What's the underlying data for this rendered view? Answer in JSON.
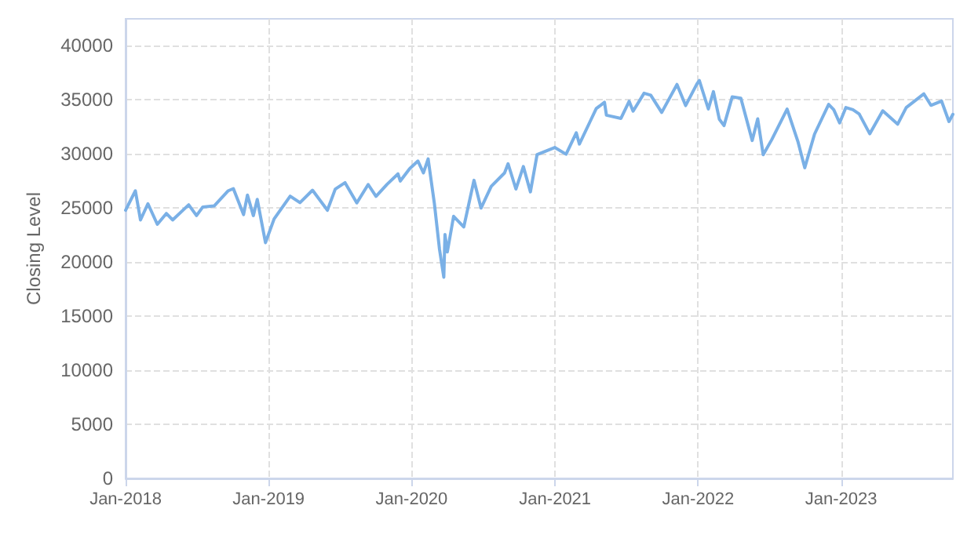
{
  "chart_data": {
    "type": "line",
    "ylabel": "Closing Level",
    "color": "#7ab0e6",
    "x": [
      "2018-01-01",
      "2018-01-26",
      "2018-02-08",
      "2018-02-27",
      "2018-03-23",
      "2018-04-15",
      "2018-05-01",
      "2018-06-11",
      "2018-07-01",
      "2018-07-17",
      "2018-08-15",
      "2018-09-20",
      "2018-10-03",
      "2018-10-29",
      "2018-11-08",
      "2018-11-23",
      "2018-12-03",
      "2018-12-24",
      "2019-01-15",
      "2019-02-25",
      "2019-03-22",
      "2019-04-23",
      "2019-05-31",
      "2019-06-20",
      "2019-07-15",
      "2019-08-14",
      "2019-09-12",
      "2019-10-02",
      "2019-10-30",
      "2019-11-27",
      "2019-12-03",
      "2019-12-27",
      "2020-01-17",
      "2020-01-31",
      "2020-02-12",
      "2020-02-28",
      "2020-03-12",
      "2020-03-23",
      "2020-03-26",
      "2020-04-01",
      "2020-04-17",
      "2020-05-13",
      "2020-06-08",
      "2020-06-26",
      "2020-07-22",
      "2020-08-25",
      "2020-09-03",
      "2020-09-23",
      "2020-10-12",
      "2020-10-30",
      "2020-11-16",
      "2020-12-31",
      "2021-01-29",
      "2021-02-24",
      "2021-03-04",
      "2021-03-31",
      "2021-04-16",
      "2021-05-07",
      "2021-05-12",
      "2021-06-18",
      "2021-07-09",
      "2021-07-19",
      "2021-08-16",
      "2021-09-02",
      "2021-09-30",
      "2021-11-08",
      "2021-11-30",
      "2021-12-29",
      "2022-01-04",
      "2022-01-27",
      "2022-02-09",
      "2022-02-24",
      "2022-03-08",
      "2022-03-29",
      "2022-04-20",
      "2022-05-19",
      "2022-06-02",
      "2022-06-16",
      "2022-07-08",
      "2022-08-16",
      "2022-09-13",
      "2022-09-30",
      "2022-10-25",
      "2022-11-30",
      "2022-12-13",
      "2022-12-28",
      "2023-01-13",
      "2023-01-31",
      "2023-02-16",
      "2023-03-15",
      "2023-04-17",
      "2023-05-25",
      "2023-06-16",
      "2023-07-31",
      "2023-08-18",
      "2023-09-14",
      "2023-10-03",
      "2023-10-13"
    ],
    "values": [
      24800,
      26600,
      23900,
      25400,
      23500,
      24500,
      23900,
      25300,
      24300,
      25100,
      25200,
      26600,
      26800,
      24400,
      26200,
      24300,
      25800,
      21800,
      24000,
      26100,
      25500,
      26650,
      24800,
      26750,
      27350,
      25480,
      27180,
      26080,
      27190,
      28160,
      27500,
      28650,
      29350,
      28250,
      29550,
      25400,
      21200,
      18600,
      22550,
      20940,
      24240,
      23250,
      27570,
      25000,
      27000,
      28250,
      29100,
      26760,
      28840,
      26500,
      29950,
      30600,
      29980,
      31960,
      30920,
      32980,
      34200,
      34780,
      33590,
      33290,
      34870,
      33960,
      35620,
      35440,
      33840,
      36430,
      34480,
      36490,
      36800,
      34160,
      35770,
      33220,
      32630,
      35290,
      35160,
      31250,
      33250,
      29930,
      31340,
      34150,
      31100,
      28730,
      31840,
      34590,
      34100,
      32875,
      34300,
      34090,
      33700,
      31870,
      33990,
      32760,
      34300,
      35560,
      34500,
      34900,
      33000,
      33670
    ],
    "xlim": [
      "2018-01-01",
      "2023-10-13"
    ],
    "xticks": [
      {
        "value": "2018-01-01",
        "label": "Jan-2018"
      },
      {
        "value": "2019-01-01",
        "label": "Jan-2019"
      },
      {
        "value": "2020-01-01",
        "label": "Jan-2020"
      },
      {
        "value": "2021-01-01",
        "label": "Jan-2021"
      },
      {
        "value": "2022-01-01",
        "label": "Jan-2022"
      },
      {
        "value": "2023-01-01",
        "label": "Jan-2023"
      }
    ],
    "ylim": [
      0,
      42500
    ],
    "yticks": [
      0,
      5000,
      10000,
      15000,
      20000,
      25000,
      30000,
      35000,
      40000
    ],
    "grid": true,
    "marker": "none",
    "line_style": "solid"
  }
}
